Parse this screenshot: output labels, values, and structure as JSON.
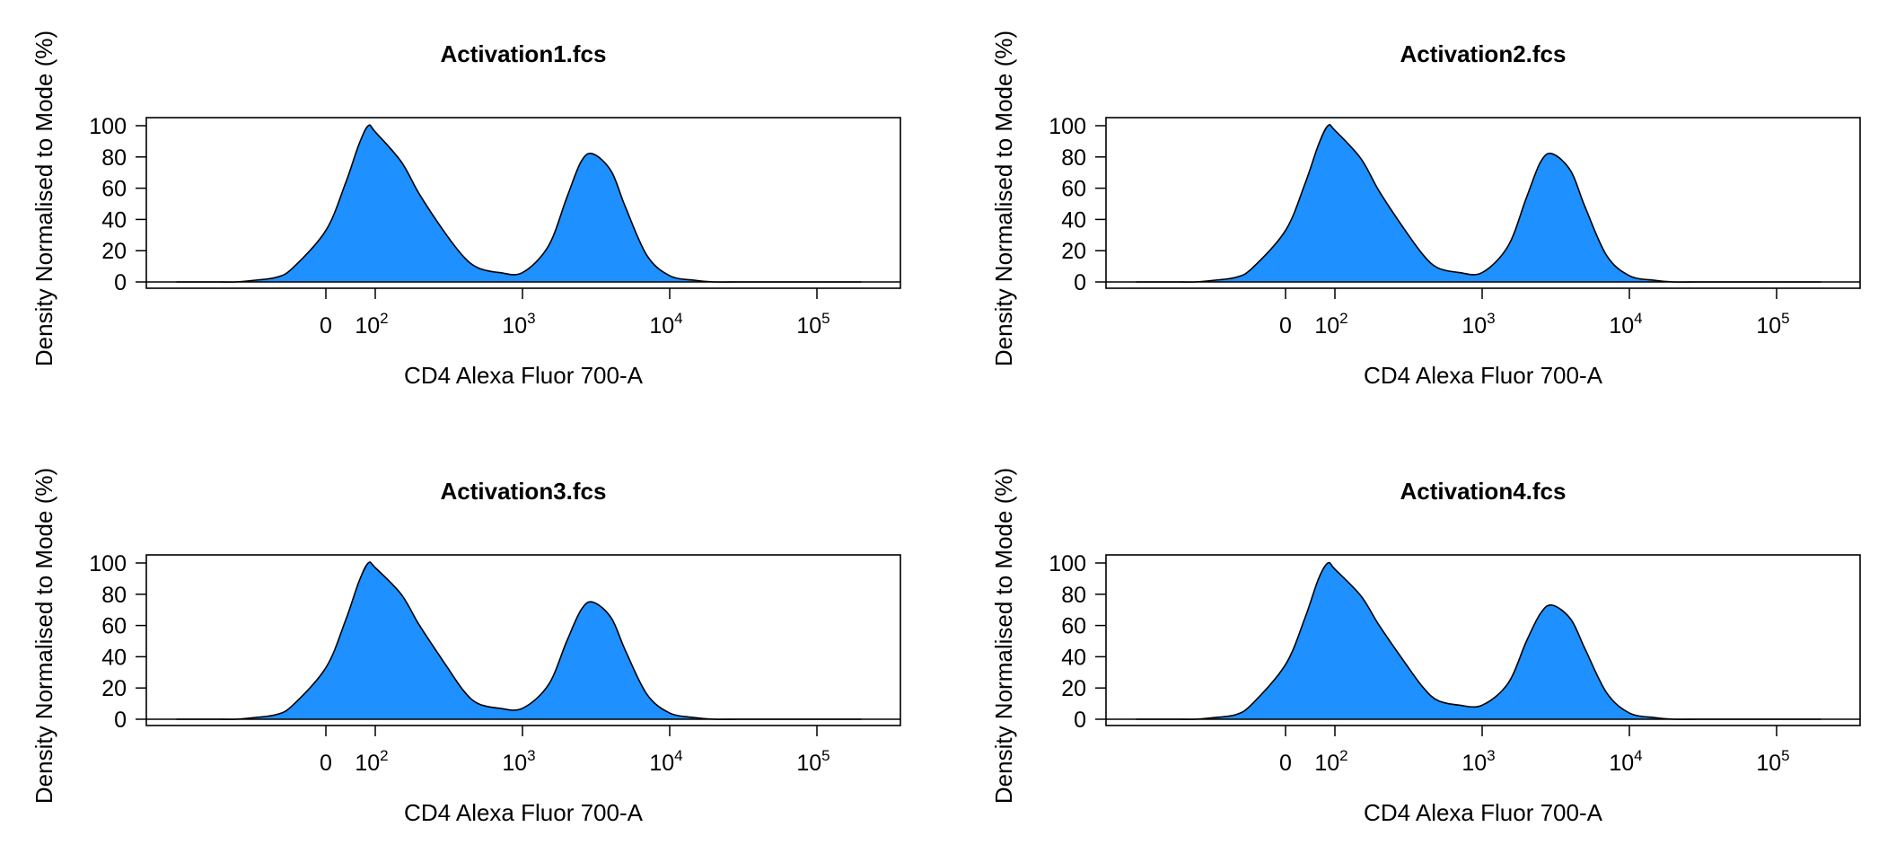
{
  "chart_data": [
    {
      "type": "area",
      "title": "Activation1.fcs",
      "xlabel": "CD4 Alexa Fluor 700-A",
      "ylabel": "Density Normalised to Mode (%)",
      "ylim": [
        0,
        100
      ],
      "yticks": [
        "0",
        "20",
        "40",
        "60",
        "80",
        "100"
      ],
      "xscale": "biexponential (logicle)",
      "xticks": [
        {
          "label": "0",
          "value": 0
        },
        {
          "base": "10",
          "exp": "2",
          "value": 100
        },
        {
          "base": "10",
          "exp": "3",
          "value": 1000
        },
        {
          "base": "10",
          "exp": "4",
          "value": 10000
        },
        {
          "base": "10",
          "exp": "5",
          "value": 100000
        }
      ],
      "fill_color": "#1E90FF",
      "grid": false,
      "legend": "none",
      "x": [
        -5000,
        -2000,
        -1000,
        -500,
        -250,
        -100,
        -50,
        0,
        25,
        50,
        75,
        100,
        150,
        200,
        300,
        400,
        500,
        700,
        1000,
        1500,
        2000,
        2500,
        3000,
        4000,
        5000,
        7000,
        10000,
        15000,
        20000,
        30000,
        50000,
        100000,
        200000
      ],
      "y": [
        0,
        0,
        0,
        0,
        1,
        3,
        9,
        33,
        63,
        88,
        100,
        96,
        77,
        56,
        31,
        16,
        9,
        6,
        6,
        23,
        54,
        77,
        82,
        71,
        48,
        17,
        4,
        1,
        0,
        0,
        0,
        0,
        0
      ]
    },
    {
      "type": "area",
      "title": "Activation2.fcs",
      "xlabel": "CD4 Alexa Fluor 700-A",
      "ylabel": "Density Normalised to Mode (%)",
      "ylim": [
        0,
        100
      ],
      "yticks": [
        "0",
        "20",
        "40",
        "60",
        "80",
        "100"
      ],
      "xscale": "biexponential (logicle)",
      "xticks": [
        {
          "label": "0",
          "value": 0
        },
        {
          "base": "10",
          "exp": "2",
          "value": 100
        },
        {
          "base": "10",
          "exp": "3",
          "value": 1000
        },
        {
          "base": "10",
          "exp": "4",
          "value": 10000
        },
        {
          "base": "10",
          "exp": "5",
          "value": 100000
        }
      ],
      "fill_color": "#1E90FF",
      "grid": false,
      "legend": "none",
      "x": [
        -5000,
        -2000,
        -1000,
        -500,
        -250,
        -100,
        -50,
        0,
        25,
        50,
        75,
        100,
        150,
        200,
        300,
        400,
        500,
        700,
        1000,
        1500,
        2000,
        2500,
        3000,
        4000,
        5000,
        7000,
        10000,
        15000,
        20000,
        30000,
        50000,
        100000,
        200000
      ],
      "y": [
        0,
        0,
        0,
        0,
        1,
        3,
        9,
        33,
        63,
        88,
        100,
        97,
        79,
        58,
        33,
        17,
        9,
        6,
        6,
        23,
        54,
        77,
        82,
        71,
        48,
        17,
        4,
        1,
        0,
        0,
        0,
        0,
        0
      ]
    },
    {
      "type": "area",
      "title": "Activation3.fcs",
      "xlabel": "CD4 Alexa Fluor 700-A",
      "ylabel": "Density Normalised to Mode (%)",
      "ylim": [
        0,
        100
      ],
      "yticks": [
        "0",
        "20",
        "40",
        "60",
        "80",
        "100"
      ],
      "xscale": "biexponential (logicle)",
      "xticks": [
        {
          "label": "0",
          "value": 0
        },
        {
          "base": "10",
          "exp": "2",
          "value": 100
        },
        {
          "base": "10",
          "exp": "3",
          "value": 1000
        },
        {
          "base": "10",
          "exp": "4",
          "value": 10000
        },
        {
          "base": "10",
          "exp": "5",
          "value": 100000
        }
      ],
      "fill_color": "#1E90FF",
      "grid": false,
      "legend": "none",
      "x": [
        -5000,
        -2000,
        -1000,
        -500,
        -250,
        -100,
        -50,
        0,
        25,
        50,
        75,
        100,
        150,
        200,
        300,
        400,
        500,
        700,
        1000,
        1500,
        2000,
        2500,
        3000,
        4000,
        5000,
        7000,
        10000,
        15000,
        20000,
        30000,
        50000,
        100000,
        200000
      ],
      "y": [
        0,
        0,
        0,
        0,
        1,
        3,
        9,
        33,
        63,
        88,
        100,
        97,
        80,
        60,
        35,
        18,
        10,
        7,
        7,
        22,
        50,
        70,
        75,
        65,
        44,
        16,
        4,
        1,
        0,
        0,
        0,
        0,
        0
      ]
    },
    {
      "type": "area",
      "title": "Activation4.fcs",
      "xlabel": "CD4 Alexa Fluor 700-A",
      "ylabel": "Density Normalised to Mode (%)",
      "ylim": [
        0,
        100
      ],
      "yticks": [
        "0",
        "20",
        "40",
        "60",
        "80",
        "100"
      ],
      "xscale": "biexponential (logicle)",
      "xticks": [
        {
          "label": "0",
          "value": 0
        },
        {
          "base": "10",
          "exp": "2",
          "value": 100
        },
        {
          "base": "10",
          "exp": "3",
          "value": 1000
        },
        {
          "base": "10",
          "exp": "4",
          "value": 10000
        },
        {
          "base": "10",
          "exp": "5",
          "value": 100000
        }
      ],
      "fill_color": "#1E90FF",
      "grid": false,
      "legend": "none",
      "x": [
        -5000,
        -2000,
        -1000,
        -500,
        -250,
        -100,
        -50,
        0,
        25,
        50,
        75,
        100,
        150,
        200,
        300,
        400,
        500,
        700,
        1000,
        1500,
        2000,
        2500,
        3000,
        4000,
        5000,
        7000,
        10000,
        15000,
        20000,
        30000,
        50000,
        100000,
        200000
      ],
      "y": [
        0,
        0,
        0,
        0,
        1,
        3,
        10,
        35,
        65,
        90,
        100,
        96,
        79,
        60,
        36,
        20,
        12,
        9,
        9,
        23,
        50,
        68,
        73,
        64,
        45,
        17,
        4,
        1,
        0,
        0,
        0,
        0,
        0
      ]
    }
  ]
}
